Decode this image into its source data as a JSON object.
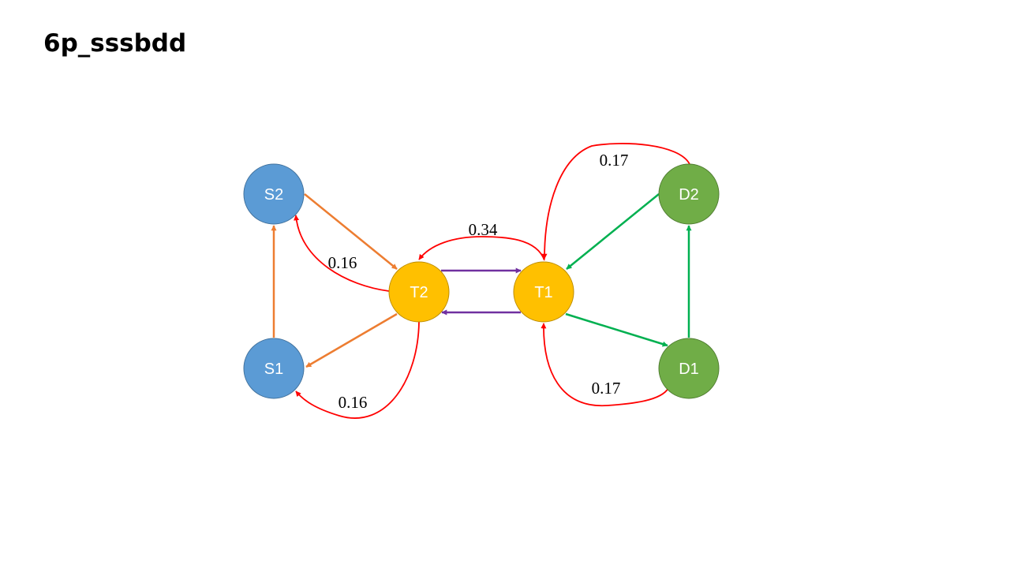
{
  "slide": {
    "title": "6p_sssbdd"
  },
  "colors": {
    "source_node": "#5b9bd5",
    "transit_node": "#ffc000",
    "dest_node": "#70ad47",
    "source_edge": "#ed7d31",
    "transit_edge": "#7030a0",
    "dest_edge": "#00b050",
    "flow_edge": "#ff0000"
  },
  "nodes": {
    "s2": {
      "label": "S2"
    },
    "s1": {
      "label": "S1"
    },
    "t2": {
      "label": "T2"
    },
    "t1": {
      "label": "T1"
    },
    "d2": {
      "label": "D2"
    },
    "d1": {
      "label": "D1"
    }
  },
  "edge_labels": {
    "t2_to_s2": "0.16",
    "t2_to_s1": "0.16",
    "t1_to_t2": "0.34",
    "d2_to_t1": "0.17",
    "d1_to_t1": "0.17"
  }
}
